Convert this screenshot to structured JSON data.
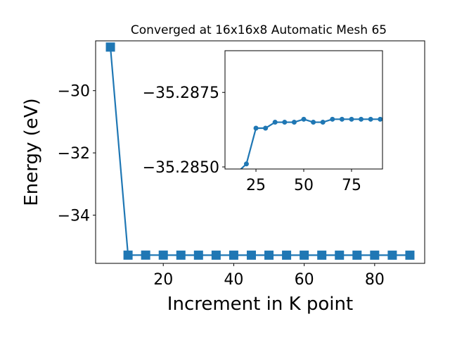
{
  "chart_data": [
    {
      "type": "line",
      "title": "Converged at 16x16x8 Automatic Mesh 65",
      "xlabel": "Increment in K point",
      "ylabel": "Energy (eV)",
      "xlim": [
        0.8,
        94.2
      ],
      "ylim": [
        -35.55,
        -28.4
      ],
      "xticks": [
        20,
        40,
        60,
        80
      ],
      "yticks": [
        -34,
        -32,
        -30
      ],
      "xtick_labels": [
        "20",
        "40",
        "60",
        "80"
      ],
      "ytick_labels": [
        "−34",
        "−32",
        "−30"
      ],
      "marker": "square",
      "color": "#1f77b4",
      "grid": false,
      "series": [
        {
          "x": [
            5,
            10,
            15,
            20,
            25,
            30,
            35,
            40,
            45,
            50,
            55,
            60,
            65,
            70,
            75,
            80,
            85,
            90
          ],
          "y": [
            -28.6,
            -35.2855,
            -35.2848,
            -35.2851,
            -35.2863,
            -35.2863,
            -35.2865,
            -35.2865,
            -35.2865,
            -35.2866,
            -35.2865,
            -35.2865,
            -35.2866,
            -35.2866,
            -35.2866,
            -35.2866,
            -35.2866,
            -35.2866
          ]
        }
      ]
    },
    {
      "type": "line",
      "title": "",
      "xlabel": "",
      "ylabel": "",
      "xlim": [
        8.8,
        91.2
      ],
      "ylim": [
        -35.28493,
        -35.2889
      ],
      "xticks": [
        25,
        50,
        75
      ],
      "yticks": [
        -35.2875,
        -35.285
      ],
      "xtick_labels": [
        "25",
        "50",
        "75"
      ],
      "ytick_labels": [
        "−35.2875",
        "−35.2850"
      ],
      "marker": "circle",
      "color": "#1f77b4",
      "grid": false,
      "series": [
        {
          "x": [
            15,
            20,
            25,
            30,
            35,
            40,
            45,
            50,
            55,
            60,
            65,
            70,
            75,
            80,
            85,
            90
          ],
          "y": [
            -35.2848,
            -35.2851,
            -35.2863,
            -35.2863,
            -35.2865,
            -35.2865,
            -35.2865,
            -35.2866,
            -35.2865,
            -35.2865,
            -35.2866,
            -35.2866,
            -35.2866,
            -35.2866,
            -35.2866,
            -35.2866
          ]
        }
      ]
    }
  ]
}
